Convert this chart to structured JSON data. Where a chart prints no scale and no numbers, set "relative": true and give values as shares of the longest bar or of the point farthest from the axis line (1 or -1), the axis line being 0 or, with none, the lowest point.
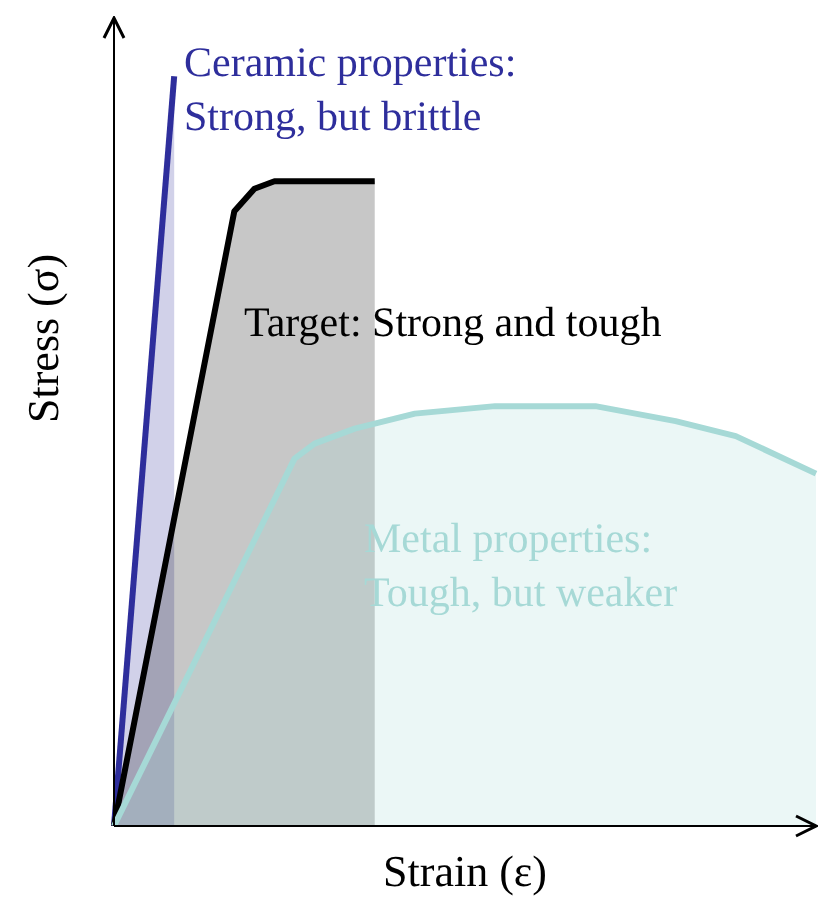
{
  "chart_data": {
    "type": "area",
    "relative": true,
    "xlabel": "Strain (ε)",
    "ylabel": "Stress (σ)",
    "categories": [
      null,
      null,
      null,
      null,
      null,
      null,
      null,
      null,
      null,
      null,
      null,
      null,
      null,
      null,
      null,
      null,
      null,
      null,
      null,
      null,
      null,
      null,
      null,
      null,
      null,
      null,
      null,
      null,
      null,
      null,
      null,
      null,
      null,
      null,
      null,
      null
    ],
    "series": [
      {
        "name": "Ceramic properties: Strong, but brittle",
        "color": "#2e2e9c",
        "values": [
          0,
          null,
          null,
          1,
          null,
          null,
          null,
          null,
          null,
          null,
          null,
          null,
          null,
          null,
          null,
          null,
          null,
          null,
          null,
          null,
          null,
          null,
          null,
          null,
          null,
          null,
          null,
          null,
          null,
          null,
          null,
          null,
          null,
          null,
          null,
          null
        ]
      },
      {
        "name": "Target: Strong and tough",
        "color": "#000000",
        "values": [
          0,
          null,
          null,
          null,
          null,
          null,
          0.82,
          0.85,
          0.86,
          0.86,
          0.86,
          0.86,
          0.86,
          0.86,
          null,
          null,
          null,
          null,
          null,
          null,
          null,
          null,
          null,
          null,
          null,
          null,
          null,
          null,
          null,
          null,
          null,
          null,
          null,
          null,
          null,
          null
        ]
      },
      {
        "name": "Metal properties: Tough, but weaker",
        "color": "#a6d9d6",
        "values": [
          0,
          null,
          null,
          null,
          null,
          null,
          null,
          null,
          null,
          0.49,
          0.51,
          null,
          0.53,
          null,
          null,
          0.55,
          null,
          null,
          null,
          0.56,
          null,
          null,
          null,
          null,
          0.56,
          null,
          null,
          null,
          0.54,
          null,
          null,
          0.52,
          null,
          null,
          null,
          0.47
        ]
      }
    ]
  }
}
